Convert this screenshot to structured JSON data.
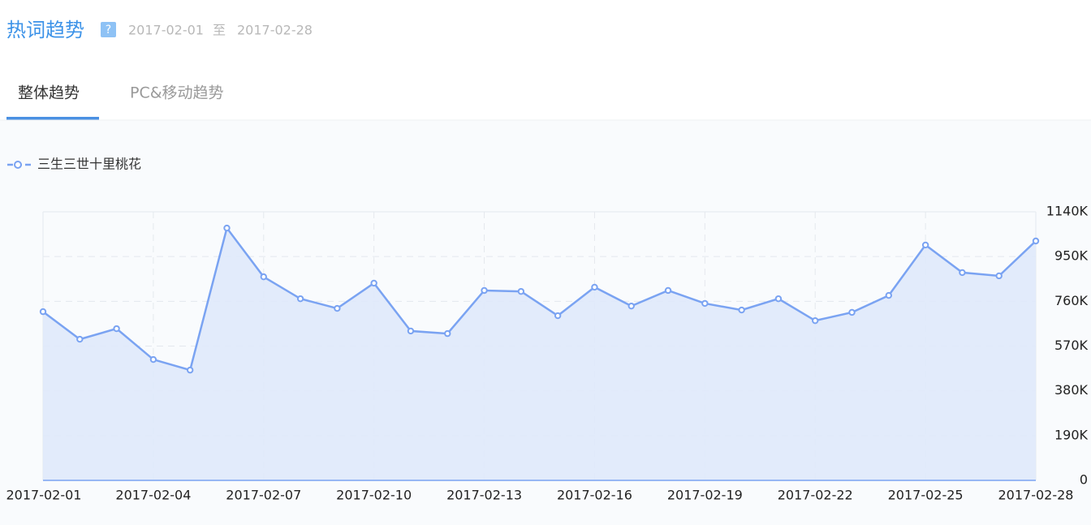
{
  "header": {
    "title": "热词趋势",
    "help": "?",
    "date_start": "2017-02-01",
    "date_separator": "至",
    "date_end": "2017-02-28"
  },
  "tabs": [
    "整体趋势",
    "PC&移动趋势"
  ],
  "chart_data": {
    "type": "line",
    "categories": [
      "2017-02-01",
      null,
      null,
      "2017-02-04",
      null,
      null,
      "2017-02-07",
      null,
      null,
      "2017-02-10",
      null,
      null,
      "2017-02-13",
      null,
      null,
      "2017-02-16",
      null,
      null,
      "2017-02-19",
      null,
      null,
      "2017-02-22",
      null,
      null,
      "2017-02-25",
      null,
      null,
      "2017-02-28"
    ],
    "series": [
      {
        "name": "三生三世十里桃花",
        "color": "#7aa3f2",
        "values": [
          716,
          599,
          644,
          513,
          468,
          1071,
          864,
          771,
          730,
          837,
          634,
          623,
          806,
          802,
          699,
          820,
          740,
          806,
          751,
          723,
          771,
          678,
          713,
          785,
          999,
          882,
          868,
          1016
        ]
      }
    ],
    "ylim": [
      0,
      1140
    ],
    "yticks": [
      0,
      {
        "value": 190,
        "label": "190K"
      },
      {
        "value": 380,
        "label": "380K"
      },
      {
        "value": 570,
        "label": "570K"
      },
      {
        "value": 760,
        "label": "760K"
      },
      {
        "value": 950,
        "label": "950K"
      },
      {
        "value": 1140,
        "label": "1140K"
      }
    ],
    "grid": true,
    "area": true
  }
}
